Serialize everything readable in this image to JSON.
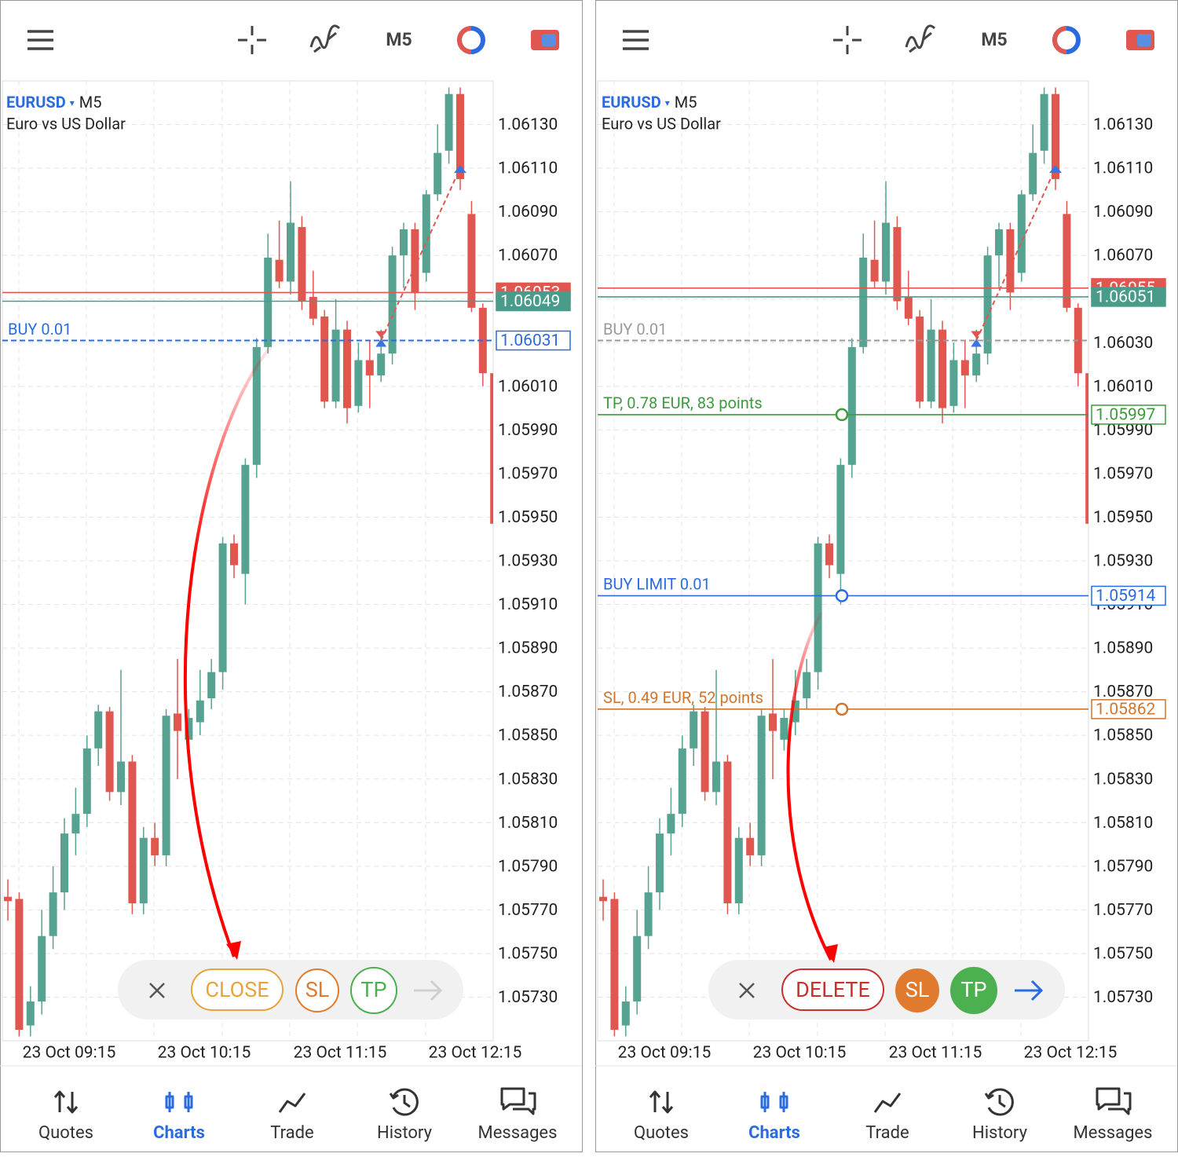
{
  "candles": [
    [
      1.05776,
      1.05784,
      1.05765,
      1.05774
    ],
    [
      1.05775,
      1.05778,
      1.05712,
      1.05715
    ],
    [
      1.05717,
      1.05735,
      1.05712,
      1.05728
    ],
    [
      1.05728,
      1.0577,
      1.05722,
      1.05758
    ],
    [
      1.05758,
      1.0579,
      1.05752,
      1.05778
    ],
    [
      1.05778,
      1.05812,
      1.0577,
      1.05805
    ],
    [
      1.05805,
      1.05826,
      1.05795,
      1.05814
    ],
    [
      1.05814,
      1.0585,
      1.05808,
      1.05844
    ],
    [
      1.05844,
      1.05864,
      1.05836,
      1.05861
    ],
    [
      1.05861,
      1.05863,
      1.0582,
      1.05824
    ],
    [
      1.05824,
      1.0588,
      1.05818,
      1.05838
    ],
    [
      1.05838,
      1.05841,
      1.05768,
      1.05773
    ],
    [
      1.05773,
      1.05808,
      1.05768,
      1.05803
    ],
    [
      1.05803,
      1.0581,
      1.0579,
      1.05795
    ],
    [
      1.05795,
      1.05862,
      1.0579,
      1.05859
    ],
    [
      1.0586,
      1.05885,
      1.0583,
      1.05852
    ],
    [
      1.05848,
      1.05862,
      1.05843,
      1.05858
    ],
    [
      1.05856,
      1.0588,
      1.0585,
      1.05866
    ],
    [
      1.05867,
      1.05885,
      1.05862,
      1.05879
    ],
    [
      1.05879,
      1.05941,
      1.05871,
      1.05938
    ],
    [
      1.05938,
      1.05942,
      1.05922,
      1.05928
    ],
    [
      1.05924,
      1.05977,
      1.0591,
      1.05974
    ],
    [
      1.05974,
      1.06032,
      1.05968,
      1.06028
    ],
    [
      1.06028,
      1.0608,
      1.06025,
      1.06069
    ],
    [
      1.06068,
      1.06086,
      1.06055,
      1.06058
    ],
    [
      1.06058,
      1.06104,
      1.06052,
      1.06085
    ],
    [
      1.06083,
      1.06088,
      1.06045,
      1.06049
    ],
    [
      1.06051,
      1.06063,
      1.06038,
      1.06041
    ],
    [
      1.06042,
      1.06045,
      1.06,
      1.06003
    ],
    [
      1.06003,
      1.0605,
      1.06,
      1.06036
    ],
    [
      1.06036,
      1.0604,
      1.05993,
      1.06
    ],
    [
      1.06001,
      1.0603,
      1.05998,
      1.06022
    ],
    [
      1.06022,
      1.06031,
      1.06,
      1.06015
    ],
    [
      1.06015,
      1.06036,
      1.06012,
      1.06025
    ],
    [
      1.06025,
      1.06074,
      1.0602,
      1.0607
    ],
    [
      1.0607,
      1.06085,
      1.06055,
      1.06082
    ],
    [
      1.06082,
      1.06085,
      1.06045,
      1.06053
    ],
    [
      1.06062,
      1.061,
      1.06058,
      1.06098
    ],
    [
      1.06098,
      1.0613,
      1.06095,
      1.06117
    ],
    [
      1.06118,
      1.06147,
      1.06112,
      1.06144
    ],
    [
      1.06144,
      1.06147,
      1.061,
      1.06105
    ],
    [
      1.06089,
      1.06095,
      1.06044,
      1.06046
    ],
    [
      1.06046,
      1.06048,
      1.0601,
      1.06016
    ],
    [
      1.06016,
      1.06016,
      1.05932,
      1.05947
    ]
  ],
  "price_axis": {
    "ylim": [
      1.0571,
      1.0615
    ],
    "yticks": [
      {
        "value": 1.0613,
        "label": "1.06130"
      },
      {
        "value": 1.0611,
        "label": "1.06110"
      },
      {
        "value": 1.0609,
        "label": "1.06090"
      },
      {
        "value": 1.0607,
        "label": "1.06070"
      },
      {
        "value": 1.0605,
        "label": "1.06050"
      },
      {
        "value": 1.0603,
        "label": "1.06030"
      },
      {
        "value": 1.0601,
        "label": "1.06010"
      },
      {
        "value": 1.0599,
        "label": "1.05990"
      },
      {
        "value": 1.0597,
        "label": "1.05970"
      },
      {
        "value": 1.0595,
        "label": "1.05950"
      },
      {
        "value": 1.0593,
        "label": "1.05930"
      },
      {
        "value": 1.0591,
        "label": "1.05910"
      },
      {
        "value": 1.0589,
        "label": "1.05890"
      },
      {
        "value": 1.0587,
        "label": "1.05870"
      },
      {
        "value": 1.0585,
        "label": "1.05850"
      },
      {
        "value": 1.0583,
        "label": "1.05830"
      },
      {
        "value": 1.0581,
        "label": "1.05810"
      },
      {
        "value": 1.0579,
        "label": "1.05790"
      },
      {
        "value": 1.0577,
        "label": "1.05770"
      },
      {
        "value": 1.0575,
        "label": "1.05750"
      },
      {
        "value": 1.0573,
        "label": "1.05730"
      }
    ]
  },
  "screens": [
    {
      "toolbar": {
        "timeframe": "M5"
      },
      "header": {
        "symbol": "EURUSD",
        "timeframe": "M5",
        "description": "Euro vs US Dollar"
      },
      "price_lines": [
        {
          "value": 1.06053,
          "tag": "1.06053",
          "color": "#e0574f",
          "tag_style": "filled"
        },
        {
          "value": 1.06049,
          "tag": "1.06049",
          "color": "#4a9c8a",
          "tag_style": "filled"
        },
        {
          "value": 1.06031,
          "tag": "1.06031",
          "text": "BUY 0.01",
          "color": "#2a6be0",
          "dashed": true,
          "tag_style": "outline"
        }
      ],
      "trade": {
        "open_price": 1.06031,
        "close_price": 1.0611
      },
      "time_labels": [
        "23 Oct 09:15",
        "23 Oct 10:15",
        "23 Oct 11:15",
        "23 Oct 12:15"
      ],
      "action_bar": {
        "main": "CLOSE",
        "sl": "SL",
        "tp": "TP",
        "filled": false,
        "main_color": "#e8a33a",
        "arrow_color": "#cfcfcf"
      },
      "nav": {
        "items": [
          "Quotes",
          "Charts",
          "Trade",
          "History",
          "Messages"
        ],
        "active": 1
      }
    },
    {
      "toolbar": {
        "timeframe": "M5"
      },
      "header": {
        "symbol": "EURUSD",
        "timeframe": "M5",
        "description": "Euro vs US Dollar"
      },
      "price_lines": [
        {
          "value": 1.06055,
          "tag": "1.06055",
          "color": "#e0574f",
          "tag_style": "filled"
        },
        {
          "value": 1.06051,
          "tag": "1.06051",
          "color": "#4a9c8a",
          "tag_style": "filled"
        },
        {
          "value": 1.06031,
          "text": "BUY 0.01",
          "color": "#9a9a9a",
          "dashed": true
        },
        {
          "value": 1.05997,
          "tag": "1.05997",
          "text": "TP, 0.78 EUR, 83 points",
          "color": "#3f9a3f",
          "tag_style": "outline",
          "handle": true
        },
        {
          "value": 1.05914,
          "tag": "1.05914",
          "text": "BUY LIMIT 0.01",
          "color": "#2a6be0",
          "tag_style": "outline",
          "handle": true
        },
        {
          "value": 1.05862,
          "tag": "1.05862",
          "text": "SL, 0.49 EUR, 52 points",
          "color": "#d0762e",
          "tag_style": "outline",
          "handle": true
        }
      ],
      "trade": {
        "open_price": 1.06031,
        "close_price": 1.0611
      },
      "time_labels": [
        "23 Oct 09:15",
        "23 Oct 10:15",
        "23 Oct 11:15",
        "23 Oct 12:15"
      ],
      "action_bar": {
        "main": "DELETE",
        "sl": "SL",
        "tp": "TP",
        "filled": true,
        "main_color": "#c9302c",
        "arrow_color": "#2a6be0"
      },
      "nav": {
        "items": [
          "Quotes",
          "Charts",
          "Trade",
          "History",
          "Messages"
        ],
        "active": 1
      }
    }
  ]
}
